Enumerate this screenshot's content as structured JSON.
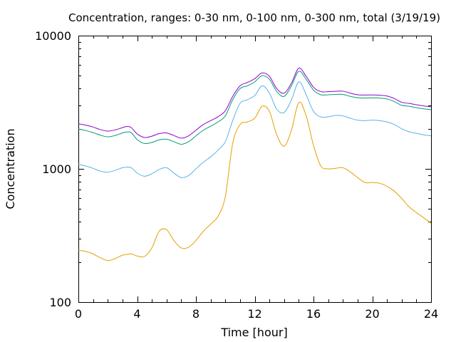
{
  "chart_data": {
    "type": "line",
    "title": "Concentration, ranges: 0-30 nm, 0-100 nm, 0-300 nm, total (3/19/19)",
    "xlabel": "Time [hour]",
    "ylabel": "Concentration",
    "xlim": [
      0,
      24
    ],
    "ylim": [
      100,
      10000
    ],
    "yscale": "log",
    "grid": false,
    "x_ticks": [
      {
        "value": 0,
        "label": "0"
      },
      {
        "value": 4,
        "label": "4"
      },
      {
        "value": 8,
        "label": "8"
      },
      {
        "value": 12,
        "label": "12"
      },
      {
        "value": 16,
        "label": "16"
      },
      {
        "value": 20,
        "label": "20"
      },
      {
        "value": 24,
        "label": "24"
      }
    ],
    "y_ticks": [
      {
        "value": 100,
        "label": "100"
      },
      {
        "value": 1000,
        "label": "1000"
      },
      {
        "value": 10000,
        "label": "10000"
      }
    ],
    "x": [
      0,
      0.5,
      1,
      1.5,
      2,
      2.5,
      3,
      3.3,
      3.6,
      4,
      4.5,
      5,
      5.5,
      6,
      6.5,
      7,
      7.5,
      8,
      8.5,
      9,
      9.5,
      10,
      10.5,
      11,
      11.5,
      12,
      12.5,
      13,
      13.5,
      14,
      14.5,
      15,
      15.5,
      16,
      16.5,
      17,
      17.5,
      18,
      18.5,
      19,
      19.5,
      20,
      20.5,
      21,
      21.5,
      22,
      22.5,
      23,
      23.5,
      24
    ],
    "series": [
      {
        "color": "#e69f00",
        "values": [
          245,
          240,
          230,
          215,
          205,
          212,
          225,
          228,
          230,
          222,
          220,
          255,
          340,
          350,
          290,
          255,
          258,
          290,
          340,
          385,
          440,
          620,
          1550,
          2150,
          2250,
          2400,
          2950,
          2700,
          1800,
          1480,
          1950,
          3150,
          2500,
          1500,
          1050,
          1000,
          1010,
          1020,
          950,
          860,
          790,
          790,
          780,
          740,
          680,
          600,
          520,
          470,
          430,
          390
        ]
      },
      {
        "color": "#56b4e9",
        "values": [
          1080,
          1050,
          1010,
          960,
          945,
          975,
          1020,
          1030,
          1020,
          930,
          880,
          920,
          990,
          1020,
          930,
          860,
          890,
          1000,
          1120,
          1230,
          1380,
          1600,
          2300,
          3100,
          3300,
          3550,
          4200,
          3700,
          2800,
          2650,
          3300,
          4500,
          3600,
          2700,
          2450,
          2460,
          2520,
          2500,
          2400,
          2320,
          2300,
          2320,
          2300,
          2250,
          2150,
          2000,
          1900,
          1850,
          1800,
          1770
        ]
      },
      {
        "color": "#009e73",
        "values": [
          1990,
          1940,
          1870,
          1790,
          1740,
          1780,
          1860,
          1890,
          1870,
          1660,
          1550,
          1580,
          1650,
          1670,
          1600,
          1530,
          1600,
          1770,
          1950,
          2090,
          2250,
          2500,
          3300,
          4000,
          4200,
          4500,
          5000,
          4700,
          3800,
          3500,
          4200,
          5400,
          4700,
          3900,
          3600,
          3600,
          3620,
          3620,
          3500,
          3420,
          3400,
          3410,
          3400,
          3350,
          3200,
          3000,
          2950,
          2880,
          2820,
          2780
        ]
      },
      {
        "color": "#9400d3",
        "values": [
          2180,
          2130,
          2060,
          1970,
          1920,
          1960,
          2040,
          2080,
          2040,
          1830,
          1720,
          1760,
          1840,
          1860,
          1780,
          1700,
          1770,
          1950,
          2150,
          2300,
          2460,
          2730,
          3500,
          4200,
          4450,
          4750,
          5250,
          4950,
          4000,
          3700,
          4400,
          5700,
          4950,
          4100,
          3800,
          3800,
          3820,
          3830,
          3700,
          3600,
          3580,
          3590,
          3570,
          3520,
          3370,
          3160,
          3100,
          3030,
          2970,
          2920
        ]
      }
    ]
  }
}
